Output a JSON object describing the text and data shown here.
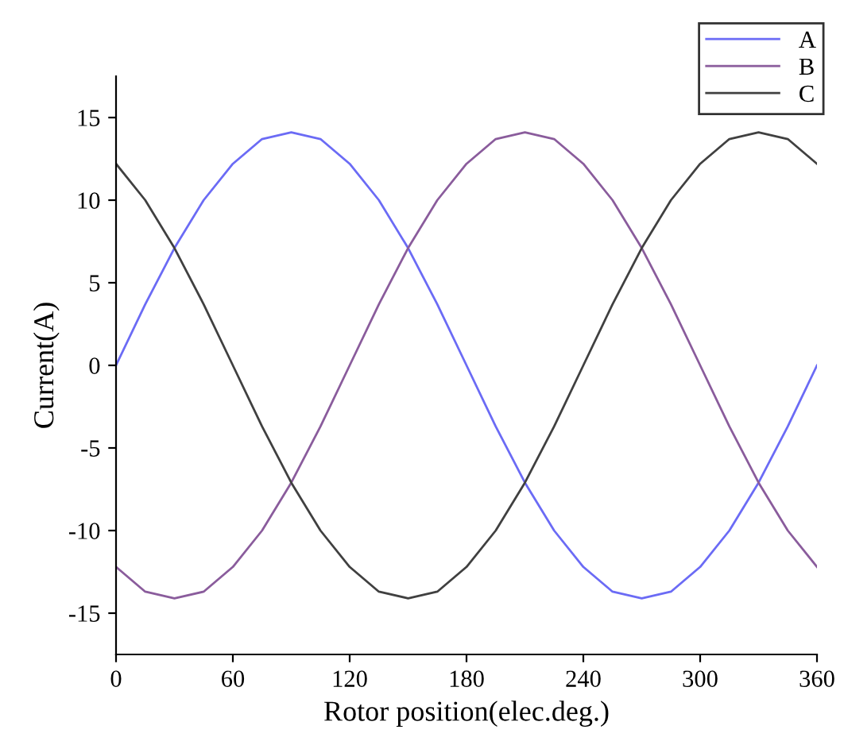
{
  "chart_data": {
    "type": "line",
    "xlabel": "Rotor position(elec.deg.)",
    "ylabel": "Current(A)",
    "x": [
      0,
      15,
      30,
      45,
      60,
      75,
      90,
      105,
      120,
      135,
      150,
      165,
      180,
      195,
      210,
      225,
      240,
      255,
      270,
      285,
      300,
      315,
      330,
      345,
      360
    ],
    "series": [
      {
        "name": "A",
        "color": "#6b6bf5",
        "values": [
          0,
          3.7,
          7.1,
          10,
          12.2,
          13.7,
          14.1,
          13.7,
          12.2,
          10,
          7.1,
          3.7,
          0,
          -3.7,
          -7.1,
          -10,
          -12.2,
          -13.7,
          -14.1,
          -13.7,
          -12.2,
          -10,
          -7.1,
          -3.7,
          0
        ]
      },
      {
        "name": "B",
        "color": "#8a5c9c",
        "values": [
          -12.2,
          -13.7,
          -14.1,
          -13.7,
          -12.2,
          -10,
          -7.1,
          -3.7,
          0,
          3.7,
          7.1,
          10,
          12.2,
          13.7,
          14.1,
          13.7,
          12.2,
          10,
          7.1,
          3.7,
          0,
          -3.7,
          -7.1,
          -10,
          -12.2
        ]
      },
      {
        "name": "C",
        "color": "#404040",
        "values": [
          12.2,
          10,
          7.1,
          3.7,
          0,
          -3.7,
          -7.1,
          -10,
          -12.2,
          -13.7,
          -14.1,
          -13.7,
          -12.2,
          -10,
          -7.1,
          -3.7,
          0,
          3.7,
          7.1,
          10,
          12.2,
          13.7,
          14.1,
          13.7,
          12.2
        ]
      }
    ],
    "xlim": [
      0,
      360
    ],
    "xticks": [
      0,
      60,
      120,
      180,
      240,
      300,
      360
    ],
    "ylim": [
      -17.5,
      17.5
    ],
    "yticks": [
      -15,
      -10,
      -5,
      0,
      5,
      10,
      15
    ],
    "grid": false,
    "legend": "top right",
    "marker": "none",
    "line_style": "solid"
  }
}
